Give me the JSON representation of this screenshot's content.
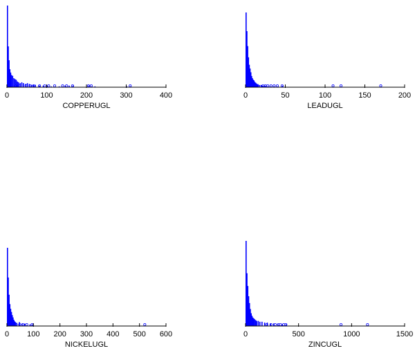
{
  "chart_data": [
    {
      "type": "bar",
      "title": "",
      "xlabel": "COPPERUGL",
      "ylabel": "",
      "xlim": [
        0,
        400
      ],
      "xticks": [
        0,
        100,
        200,
        300,
        400
      ],
      "tick_labels": [
        "0",
        "100",
        "200",
        "300",
        "400"
      ],
      "grid": false,
      "bins": [
        {
          "x": 0,
          "value": 1.0
        },
        {
          "x": 2,
          "value": 0.5
        },
        {
          "x": 4,
          "value": 0.33
        },
        {
          "x": 6,
          "value": 0.22
        },
        {
          "x": 8,
          "value": 0.18
        },
        {
          "x": 10,
          "value": 0.15
        },
        {
          "x": 13,
          "value": 0.14
        },
        {
          "x": 16,
          "value": 0.11
        },
        {
          "x": 19,
          "value": 0.1
        },
        {
          "x": 22,
          "value": 0.09
        },
        {
          "x": 25,
          "value": 0.07
        },
        {
          "x": 28,
          "value": 0.06
        },
        {
          "x": 32,
          "value": 0.05
        },
        {
          "x": 36,
          "value": 0.06
        },
        {
          "x": 40,
          "value": 0.05
        },
        {
          "x": 45,
          "value": 0.04
        },
        {
          "x": 50,
          "value": 0.05
        },
        {
          "x": 55,
          "value": 0.04
        },
        {
          "x": 60,
          "value": 0.03
        },
        {
          "x": 65,
          "value": 0.03
        },
        {
          "x": 70,
          "value": 0.03
        },
        {
          "x": 80,
          "value": 0.02
        },
        {
          "x": 90,
          "value": 0.02
        },
        {
          "x": 100,
          "value": 0.02
        },
        {
          "x": 110,
          "value": 0.01
        },
        {
          "x": 130,
          "value": 0.01
        },
        {
          "x": 145,
          "value": 0.02
        },
        {
          "x": 155,
          "value": 0.02
        },
        {
          "x": 165,
          "value": 0.02
        },
        {
          "x": 205,
          "value": 0.02
        },
        {
          "x": 212,
          "value": 0.01
        },
        {
          "x": 220,
          "value": 0.01
        },
        {
          "x": 300,
          "value": 0.01
        },
        {
          "x": 310,
          "value": 0.01
        }
      ],
      "outliers": [
        22,
        31,
        48,
        58,
        67,
        82,
        95,
        105,
        120,
        140,
        150,
        165,
        205,
        212,
        310
      ]
    },
    {
      "type": "bar",
      "title": "",
      "xlabel": "LEADUGL",
      "ylabel": "",
      "xlim": [
        0,
        200
      ],
      "xticks": [
        0,
        50,
        100,
        150,
        200
      ],
      "tick_labels": [
        "0",
        "50",
        "100",
        "150",
        "200"
      ],
      "grid": false,
      "bins": [
        {
          "x": 0,
          "value": 1.0
        },
        {
          "x": 1,
          "value": 0.75
        },
        {
          "x": 2,
          "value": 0.55
        },
        {
          "x": 3,
          "value": 0.4
        },
        {
          "x": 4,
          "value": 0.3
        },
        {
          "x": 5,
          "value": 0.25
        },
        {
          "x": 6,
          "value": 0.2
        },
        {
          "x": 7,
          "value": 0.15
        },
        {
          "x": 8,
          "value": 0.12
        },
        {
          "x": 9,
          "value": 0.1
        },
        {
          "x": 10,
          "value": 0.09
        },
        {
          "x": 11,
          "value": 0.07
        },
        {
          "x": 12,
          "value": 0.06
        },
        {
          "x": 13,
          "value": 0.05
        },
        {
          "x": 14,
          "value": 0.04
        },
        {
          "x": 15,
          "value": 0.04
        },
        {
          "x": 17,
          "value": 0.03
        },
        {
          "x": 19,
          "value": 0.03
        },
        {
          "x": 21,
          "value": 0.02
        },
        {
          "x": 24,
          "value": 0.02
        },
        {
          "x": 27,
          "value": 0.01
        },
        {
          "x": 30,
          "value": 0.01
        },
        {
          "x": 35,
          "value": 0.01
        },
        {
          "x": 40,
          "value": 0.01
        },
        {
          "x": 46,
          "value": 0.02
        }
      ],
      "outliers": [
        10,
        15,
        22,
        25,
        28,
        32,
        36,
        40,
        46,
        110,
        120,
        170
      ]
    },
    {
      "type": "bar",
      "title": "",
      "xlabel": "NICKELUGL",
      "ylabel": "",
      "xlim": [
        0,
        600
      ],
      "xticks": [
        0,
        100,
        200,
        300,
        400,
        500,
        600
      ],
      "tick_labels": [
        "0",
        "100",
        "200",
        "300",
        "400",
        "500",
        "600"
      ],
      "grid": false,
      "bins": [
        {
          "x": 0,
          "value": 1.0
        },
        {
          "x": 3,
          "value": 0.62
        },
        {
          "x": 6,
          "value": 0.4
        },
        {
          "x": 9,
          "value": 0.28
        },
        {
          "x": 12,
          "value": 0.22
        },
        {
          "x": 15,
          "value": 0.18
        },
        {
          "x": 18,
          "value": 0.14
        },
        {
          "x": 21,
          "value": 0.11
        },
        {
          "x": 24,
          "value": 0.08
        },
        {
          "x": 27,
          "value": 0.06
        },
        {
          "x": 30,
          "value": 0.05
        },
        {
          "x": 35,
          "value": 0.04
        },
        {
          "x": 45,
          "value": 0.05
        },
        {
          "x": 55,
          "value": 0.03
        },
        {
          "x": 65,
          "value": 0.03
        },
        {
          "x": 85,
          "value": 0.02
        },
        {
          "x": 95,
          "value": 0.02
        }
      ],
      "outliers": [
        35,
        48,
        60,
        75,
        95,
        520
      ]
    },
    {
      "type": "bar",
      "title": "",
      "xlabel": "ZINCUGL",
      "ylabel": "",
      "xlim": [
        0,
        1500
      ],
      "xticks": [
        0,
        500,
        1000,
        1500
      ],
      "tick_labels": [
        "0",
        "500",
        "1000",
        "1500"
      ],
      "grid": false,
      "bins": [
        {
          "x": 0,
          "value": 1.0
        },
        {
          "x": 8,
          "value": 0.62
        },
        {
          "x": 16,
          "value": 0.47
        },
        {
          "x": 24,
          "value": 0.35
        },
        {
          "x": 32,
          "value": 0.27
        },
        {
          "x": 40,
          "value": 0.2
        },
        {
          "x": 48,
          "value": 0.15
        },
        {
          "x": 56,
          "value": 0.12
        },
        {
          "x": 64,
          "value": 0.1
        },
        {
          "x": 72,
          "value": 0.09
        },
        {
          "x": 80,
          "value": 0.08
        },
        {
          "x": 90,
          "value": 0.07
        },
        {
          "x": 100,
          "value": 0.06
        },
        {
          "x": 115,
          "value": 0.06
        },
        {
          "x": 130,
          "value": 0.05
        },
        {
          "x": 150,
          "value": 0.05
        },
        {
          "x": 175,
          "value": 0.04
        },
        {
          "x": 200,
          "value": 0.04
        },
        {
          "x": 230,
          "value": 0.03
        },
        {
          "x": 260,
          "value": 0.03
        },
        {
          "x": 300,
          "value": 0.02
        },
        {
          "x": 340,
          "value": 0.02
        },
        {
          "x": 380,
          "value": 0.02
        }
      ],
      "outliers": [
        200,
        240,
        280,
        310,
        330,
        360,
        380,
        900,
        1150
      ]
    }
  ],
  "colors": {
    "bar": "#0000ff",
    "marker": "#0000ff",
    "axis": "#000000"
  }
}
